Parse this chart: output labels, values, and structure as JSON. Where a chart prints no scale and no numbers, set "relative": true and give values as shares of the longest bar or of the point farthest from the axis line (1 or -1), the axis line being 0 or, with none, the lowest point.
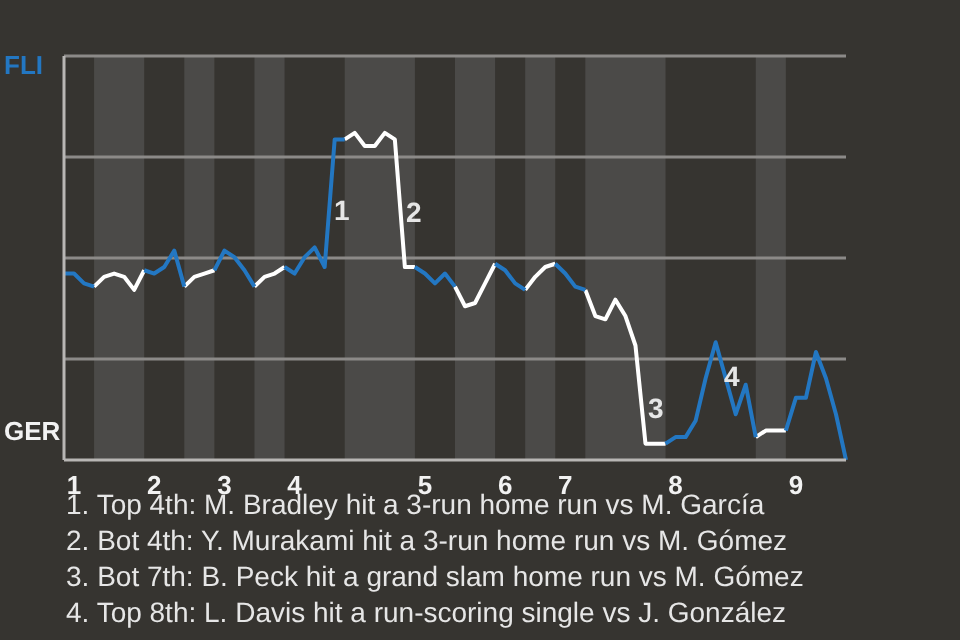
{
  "chart_data": {
    "type": "line",
    "relative": true,
    "categories": [
      null,
      "1",
      null,
      null,
      null,
      null,
      null,
      null,
      null,
      "2",
      null,
      null,
      null,
      null,
      null,
      null,
      "3",
      null,
      null,
      null,
      null,
      null,
      null,
      "4",
      null,
      null,
      null,
      null,
      null,
      null,
      null,
      null,
      null,
      null,
      null,
      null,
      "5",
      null,
      null,
      null,
      null,
      null,
      null,
      null,
      "6",
      null,
      null,
      null,
      null,
      null,
      "7",
      null,
      null,
      null,
      null,
      null,
      null,
      null,
      null,
      null,
      null,
      "8",
      null,
      null,
      null,
      null,
      null,
      null,
      null,
      null,
      null,
      null,
      null,
      "9",
      null,
      null,
      null,
      null,
      null
    ],
    "series": [
      {
        "color": "#2377c2",
        "values": [
          0.57,
          0.57,
          0.54,
          0.53,
          null,
          null,
          null,
          null,
          0.58,
          0.57,
          0.59,
          0.64,
          0.53,
          null,
          null,
          0.58,
          0.64,
          0.62,
          0.58,
          0.53,
          null,
          null,
          0.59,
          0.57,
          0.62,
          0.65,
          0.59,
          0.98,
          0.98,
          null,
          null,
          null,
          null,
          null,
          null,
          0.59,
          0.57,
          0.54,
          0.57,
          0.53,
          null,
          null,
          null,
          0.6,
          0.58,
          0.54,
          0.52,
          null,
          null,
          0.6,
          0.57,
          0.53,
          0.52,
          null,
          null,
          null,
          null,
          null,
          null,
          null,
          0.05,
          0.07,
          0.07,
          0.12,
          0.25,
          0.36,
          0.25,
          0.14,
          0.23,
          0.07,
          null,
          null,
          0.09,
          0.19,
          0.19,
          0.33,
          0.25,
          0.14,
          0
        ]
      },
      {
        "color": "#ffffff",
        "values": [
          null,
          null,
          null,
          0.53,
          0.56,
          0.57,
          0.56,
          0.52,
          0.58,
          null,
          null,
          null,
          0.53,
          0.56,
          0.57,
          0.58,
          null,
          null,
          null,
          0.53,
          0.56,
          0.57,
          0.59,
          null,
          null,
          null,
          null,
          null,
          0.98,
          1,
          0.96,
          0.96,
          1,
          0.98,
          0.59,
          0.59,
          null,
          null,
          null,
          0.53,
          0.47,
          0.48,
          0.54,
          0.6,
          null,
          null,
          0.52,
          0.56,
          0.59,
          0.6,
          null,
          null,
          0.52,
          0.44,
          0.43,
          0.49,
          0.44,
          0.35,
          0.05,
          0.05,
          0.05,
          null,
          null,
          null,
          null,
          null,
          null,
          null,
          null,
          0.07,
          0.09,
          0.09,
          0.09,
          null,
          null,
          null,
          null,
          null,
          null
        ]
      }
    ],
    "grid": "y",
    "legend": false,
    "marker": "none",
    "annotations": [
      "FLI",
      "GER",
      "1",
      "2",
      "3",
      "4",
      "1. Top 4th: M. Bradley hit a 3-run home run vs M. García",
      "2. Bot 4th: Y. Murakami hit a 3-run home run vs M. Gómez",
      "3. Bot 7th: B. Peck hit a grand slam home run vs M. Gómez",
      "4. Top 8th: L. Davis hit a run-scoring single vs J. González"
    ]
  }
}
